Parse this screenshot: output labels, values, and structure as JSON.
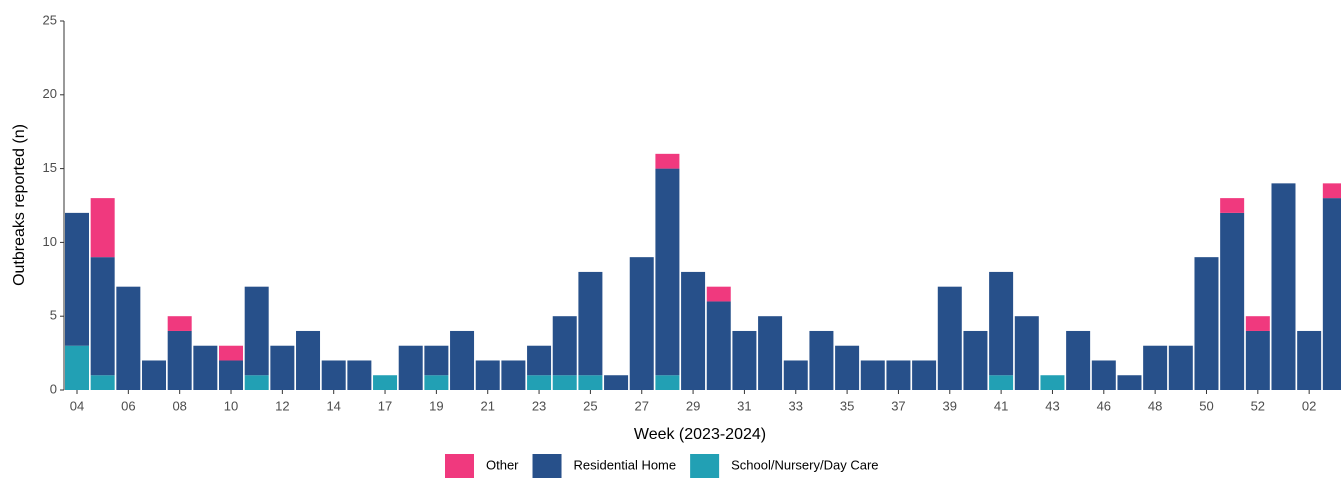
{
  "chart_data": {
    "type": "stacked_bar",
    "x_label": "Week (2023-2024)",
    "y_label": "Outbreaks reported (n)",
    "categories": [
      "04",
      null,
      "06",
      null,
      "08",
      null,
      "10",
      null,
      "12",
      null,
      "14",
      null,
      "17",
      null,
      "19",
      null,
      "21",
      null,
      "23",
      null,
      "25",
      null,
      "27",
      null,
      "29",
      null,
      "31",
      null,
      "33",
      null,
      "35",
      null,
      "37",
      null,
      "39",
      null,
      "41",
      null,
      "43",
      null,
      "46",
      null,
      "48",
      null,
      "50",
      null,
      "52",
      null,
      "02",
      null
    ],
    "series": [
      {
        "name": "Other",
        "color": "#f0397e",
        "values": [
          0,
          4,
          0,
          0,
          1,
          0,
          1,
          0,
          0,
          0,
          0,
          0,
          0,
          0,
          0,
          0,
          0,
          0,
          0,
          0,
          0,
          0,
          0,
          1,
          0,
          1,
          0,
          0,
          0,
          0,
          0,
          0,
          0,
          0,
          0,
          0,
          0,
          0,
          0,
          0,
          0,
          0,
          0,
          0,
          0,
          1,
          1,
          0,
          0,
          1
        ]
      },
      {
        "name": "Residential Home",
        "color": "#27508a",
        "values": [
          9,
          8,
          7,
          2,
          4,
          3,
          2,
          6,
          3,
          4,
          2,
          2,
          0,
          3,
          2,
          4,
          2,
          2,
          2,
          4,
          7,
          1,
          9,
          14,
          8,
          6,
          4,
          5,
          2,
          4,
          3,
          2,
          2,
          2,
          7,
          4,
          7,
          5,
          0,
          4,
          2,
          1,
          3,
          3,
          9,
          12,
          4,
          14,
          4,
          13
        ]
      },
      {
        "name": "School/Nursery/Day Care",
        "color": "#22a0b4",
        "values": [
          3,
          1,
          0,
          0,
          0,
          0,
          0,
          1,
          0,
          0,
          0,
          0,
          1,
          0,
          1,
          0,
          0,
          0,
          1,
          1,
          1,
          0,
          0,
          1,
          0,
          0,
          0,
          0,
          0,
          0,
          0,
          0,
          0,
          0,
          0,
          0,
          1,
          0,
          1,
          0,
          0,
          0,
          0,
          0,
          0,
          0,
          0,
          0,
          0,
          0
        ]
      }
    ],
    "ylim": [
      0,
      25
    ],
    "yticks": [
      0,
      5,
      10,
      15,
      20,
      25
    ],
    "legend": "bottom"
  }
}
